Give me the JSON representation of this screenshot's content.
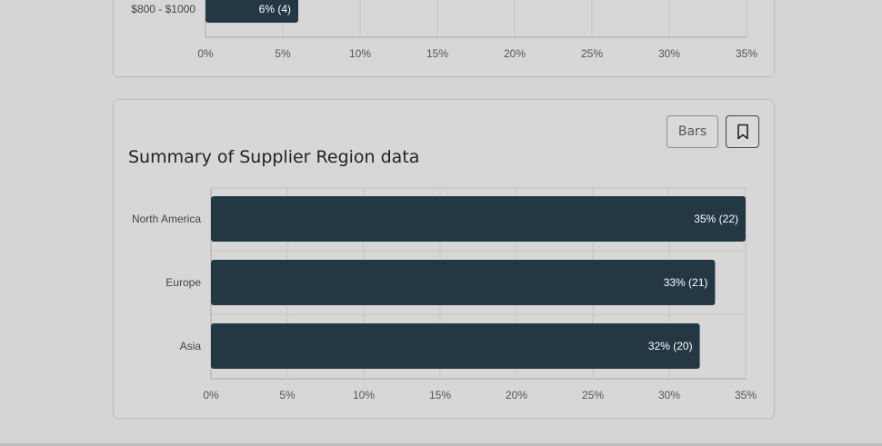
{
  "top_chart": {
    "chart_data": {
      "type": "bar",
      "orientation": "horizontal",
      "categories": [
        "$800 - $1000"
      ],
      "values": [
        6
      ],
      "value_labels": [
        "6% (4)"
      ],
      "xlim": [
        0,
        35
      ],
      "x_ticks": [
        "0%",
        "5%",
        "10%",
        "15%",
        "20%",
        "25%",
        "30%",
        "35%"
      ],
      "grid": true,
      "bar_color": "#233843"
    }
  },
  "main_card": {
    "title": "Summary of Supplier Region data",
    "bars_button_label": "Bars",
    "bookmark_icon": "bookmark-icon"
  },
  "chart_data": {
    "type": "bar",
    "orientation": "horizontal",
    "title": "Summary of Supplier Region data",
    "categories": [
      "North America",
      "Europe",
      "Asia"
    ],
    "values": [
      35,
      33,
      32
    ],
    "counts": [
      22,
      21,
      20
    ],
    "value_labels": [
      "35% (22)",
      "33% (21)",
      "32% (20)"
    ],
    "xlim": [
      0,
      35
    ],
    "x_ticks": [
      "0%",
      "5%",
      "10%",
      "15%",
      "20%",
      "25%",
      "30%",
      "35%"
    ],
    "grid": true,
    "bar_color": "#233843",
    "label_color": "#ffffff"
  }
}
